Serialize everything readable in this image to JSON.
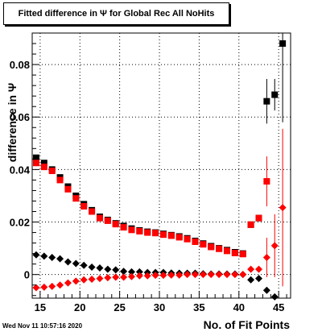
{
  "title": "Fitted difference in  Ψ  for Global Rec All NoHits",
  "timestamp": "Wed Nov 11 10:57:16 2020",
  "colors": {
    "series_black": "#000000",
    "series_red": "#ff0000",
    "axes": "#000000",
    "grid": "#000000"
  },
  "chart_data": {
    "type": "scatter",
    "title": "Fitted difference in  Ψ  for Global Rec All NoHits",
    "xlabel": "No. of Fit Points",
    "ylabel": "difference in  Ψ",
    "xlim": [
      14,
      46.5
    ],
    "ylim": [
      -0.009,
      0.092
    ],
    "x_ticks": [
      15,
      20,
      25,
      30,
      35,
      40,
      45
    ],
    "x_tick_labels": [
      "15",
      "20",
      "25",
      "30",
      "35",
      "40",
      "45"
    ],
    "y_ticks": [
      0,
      0.02,
      0.04,
      0.06,
      0.08
    ],
    "y_tick_labels": [
      "0",
      "0.02",
      "0.04",
      "0.06",
      "0.08"
    ],
    "grid": true,
    "series": [
      {
        "marker": "square",
        "color": "#000000",
        "x": [
          14.5,
          15.5,
          16.5,
          17.5,
          18.5,
          19.5,
          20.5,
          21.5,
          22.5,
          23.5,
          24.5,
          25.5,
          26.5,
          27.5,
          28.5,
          29.5,
          30.5,
          31.5,
          32.5,
          33.5,
          34.5,
          35.5,
          36.5,
          37.5,
          38.5,
          39.5,
          40.5,
          41.5,
          42.5,
          43.5,
          44.5,
          45.5
        ],
        "y": [
          0.0445,
          0.0425,
          0.04,
          0.037,
          0.0335,
          0.03,
          0.0268,
          0.0245,
          0.022,
          0.0208,
          0.0195,
          0.0185,
          0.0175,
          0.0168,
          0.0163,
          0.016,
          0.0155,
          0.015,
          0.0145,
          0.0138,
          0.0128,
          0.0118,
          0.0108,
          0.01,
          0.0093,
          0.0085,
          0.008,
          0.019,
          0.0215,
          0.066,
          0.0685,
          0.088
        ],
        "err": [
          0,
          0,
          0,
          0,
          0,
          0,
          0,
          0,
          0,
          0,
          0,
          0,
          0,
          0,
          0,
          0,
          0,
          0,
          0,
          0,
          0,
          0,
          0,
          0,
          0,
          0,
          0,
          0.001,
          0.001,
          0.0085,
          0.006,
          0.03
        ]
      },
      {
        "marker": "square",
        "color": "#ff0000",
        "x": [
          14.5,
          15.5,
          16.5,
          17.5,
          18.5,
          19.5,
          20.5,
          21.5,
          22.5,
          23.5,
          24.5,
          25.5,
          26.5,
          27.5,
          28.5,
          29.5,
          30.5,
          31.5,
          32.5,
          33.5,
          34.5,
          35.5,
          36.5,
          37.5,
          38.5,
          39.5,
          40.5,
          41.5,
          42.5,
          43.5
        ],
        "y": [
          0.0425,
          0.041,
          0.0395,
          0.036,
          0.0325,
          0.029,
          0.026,
          0.024,
          0.0215,
          0.0205,
          0.0192,
          0.018,
          0.017,
          0.0165,
          0.016,
          0.0158,
          0.0152,
          0.0148,
          0.0142,
          0.0135,
          0.0125,
          0.0115,
          0.0105,
          0.0098,
          0.009,
          0.0082,
          0.0078,
          0.019,
          0.0215,
          0.0355
        ],
        "err": [
          0,
          0,
          0,
          0,
          0,
          0,
          0,
          0,
          0,
          0,
          0,
          0,
          0,
          0,
          0,
          0,
          0,
          0,
          0,
          0,
          0,
          0,
          0,
          0,
          0,
          0,
          0,
          0.001,
          0.001,
          0.0095
        ]
      },
      {
        "marker": "diamond",
        "color": "#000000",
        "x": [
          14.5,
          15.5,
          16.5,
          17.5,
          18.5,
          19.5,
          20.5,
          21.5,
          22.5,
          23.5,
          24.5,
          25.5,
          26.5,
          27.5,
          28.5,
          29.5,
          30.5,
          31.5,
          32.5,
          33.5,
          34.5,
          35.5,
          36.5,
          37.5,
          38.5,
          39.5,
          40.5,
          41.5,
          42.5,
          43.5,
          44.5
        ],
        "y": [
          0.0075,
          0.007,
          0.0065,
          0.006,
          0.0048,
          0.0042,
          0.0035,
          0.0028,
          0.0025,
          0.002,
          0.0018,
          0.0012,
          0.001,
          0.001,
          0.0008,
          0.0008,
          0.0008,
          0.0006,
          0.0005,
          0.0005,
          0.0005,
          0.0003,
          0.0002,
          0.0002,
          0.0002,
          0.0002,
          0.0,
          -0.002,
          -0.0015,
          -0.006,
          -0.0085
        ],
        "err": [
          0,
          0,
          0,
          0,
          0,
          0,
          0,
          0,
          0,
          0,
          0,
          0,
          0,
          0,
          0,
          0,
          0,
          0,
          0,
          0,
          0,
          0,
          0,
          0,
          0,
          0,
          0,
          0,
          0,
          0,
          0
        ]
      },
      {
        "marker": "diamond",
        "color": "#ff0000",
        "x": [
          14.5,
          15.5,
          16.5,
          17.5,
          18.5,
          19.5,
          20.5,
          21.5,
          22.5,
          23.5,
          24.5,
          25.5,
          26.5,
          27.5,
          28.5,
          29.5,
          30.5,
          31.5,
          32.5,
          33.5,
          34.5,
          35.5,
          36.5,
          37.5,
          38.5,
          39.5,
          40.5,
          41.5,
          42.5,
          43.5,
          44.5,
          45.5
        ],
        "y": [
          -0.005,
          -0.0048,
          -0.0045,
          -0.004,
          -0.0032,
          -0.0025,
          -0.002,
          -0.0018,
          -0.0015,
          -0.0012,
          -0.001,
          -0.001,
          -0.0008,
          -0.0005,
          -0.0005,
          -0.0003,
          -0.0003,
          -0.0002,
          -0.0002,
          0.0,
          0.0,
          0.0,
          0.0,
          0.0,
          0.0,
          0.0,
          0.0,
          0.002,
          0.002,
          0.0065,
          0.011,
          0.0255
        ],
        "err": [
          0,
          0,
          0,
          0,
          0,
          0,
          0,
          0,
          0,
          0,
          0,
          0,
          0,
          0,
          0,
          0,
          0,
          0,
          0,
          0,
          0,
          0,
          0,
          0,
          0,
          0,
          0,
          0,
          0,
          0.0075,
          0.012,
          0.03
        ]
      }
    ]
  }
}
